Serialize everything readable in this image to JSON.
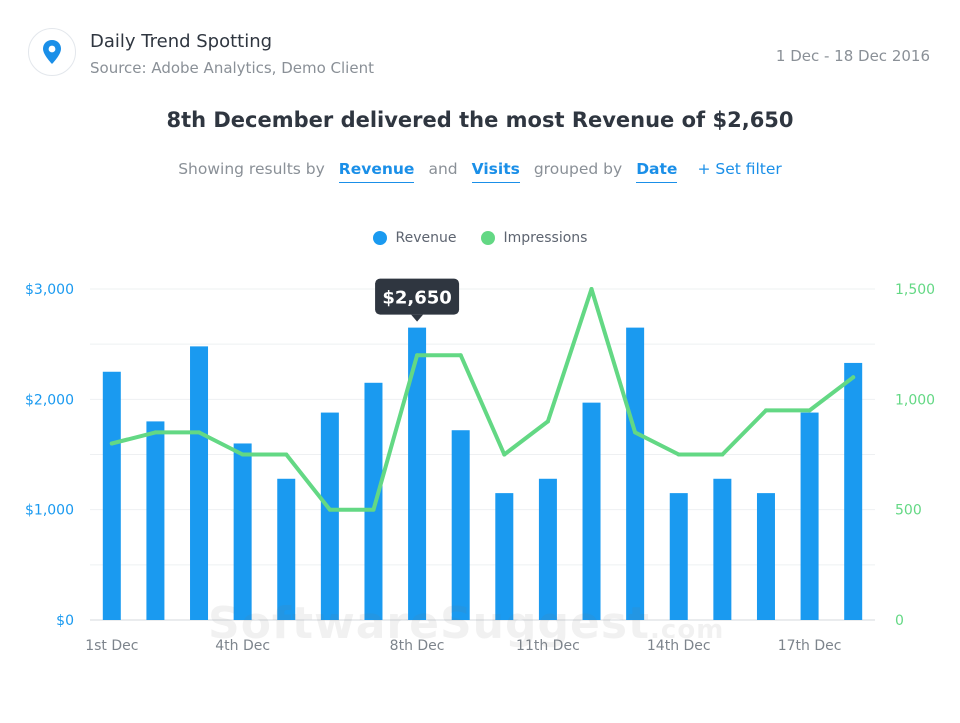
{
  "header": {
    "title": "Daily Trend Spotting",
    "source": "Source: Adobe Analytics, Demo Client",
    "date_range": "1 Dec - 18 Dec 2016"
  },
  "headline": "8th December delivered the most Revenue of $2,650",
  "query": {
    "prefix": "Showing results by",
    "metric1": "Revenue",
    "and": "and",
    "metric2": "Visits",
    "grouped": "grouped by",
    "group": "Date",
    "filter": "+ Set filter"
  },
  "icons": {
    "logo": "location-pin-icon"
  },
  "colors": {
    "revenue": "#1a9af0",
    "impressions": "#63d884",
    "tooltip": "#2f3640",
    "axis_left": "#1a9af0",
    "axis_right": "#63d884"
  },
  "watermark": {
    "main": "SoftwareSuggest",
    "suffix": ".com"
  },
  "chart_data": {
    "type": "bar",
    "title": "",
    "categories": [
      "1st Dec",
      "2nd Dec",
      "3rd Dec",
      "4th Dec",
      "5th Dec",
      "6th Dec",
      "7th Dec",
      "8th Dec",
      "9th Dec",
      "10th Dec",
      "11th Dec",
      "12th Dec",
      "13th Dec",
      "14th Dec",
      "15th Dec",
      "16th Dec",
      "17th Dec",
      "18th Dec"
    ],
    "x_tick_labels": [
      "1st Dec",
      "4th Dec",
      "8th Dec",
      "11th Dec",
      "14th Dec",
      "17th Dec"
    ],
    "x_tick_indices": [
      0,
      3,
      7,
      10,
      13,
      16
    ],
    "series": [
      {
        "name": "Revenue",
        "type": "bar",
        "axis": "left",
        "values": [
          2250,
          1800,
          2480,
          1600,
          1280,
          1880,
          2150,
          2650,
          1720,
          1150,
          1280,
          1970,
          2650,
          1150,
          1280,
          1150,
          1880,
          2330
        ]
      },
      {
        "name": "Impressions",
        "type": "line",
        "axis": "right",
        "values": [
          800,
          850,
          850,
          750,
          750,
          500,
          500,
          1200,
          1200,
          750,
          900,
          1500,
          850,
          750,
          750,
          950,
          950,
          1100
        ]
      }
    ],
    "y_left": {
      "ylim": [
        0,
        3000
      ],
      "ticks": [
        0,
        1000,
        2000,
        3000
      ],
      "tick_labels": [
        "$0",
        "$1,000",
        "$2,000",
        "$3,000"
      ]
    },
    "y_right": {
      "ylim": [
        0,
        1500
      ],
      "ticks": [
        0,
        500,
        1000,
        1500
      ],
      "tick_labels": [
        "0",
        "500",
        "1,000",
        "1,500"
      ]
    },
    "grid": true,
    "legend_position": "top-center",
    "annotation": {
      "index": 7,
      "text": "$2,650"
    }
  }
}
